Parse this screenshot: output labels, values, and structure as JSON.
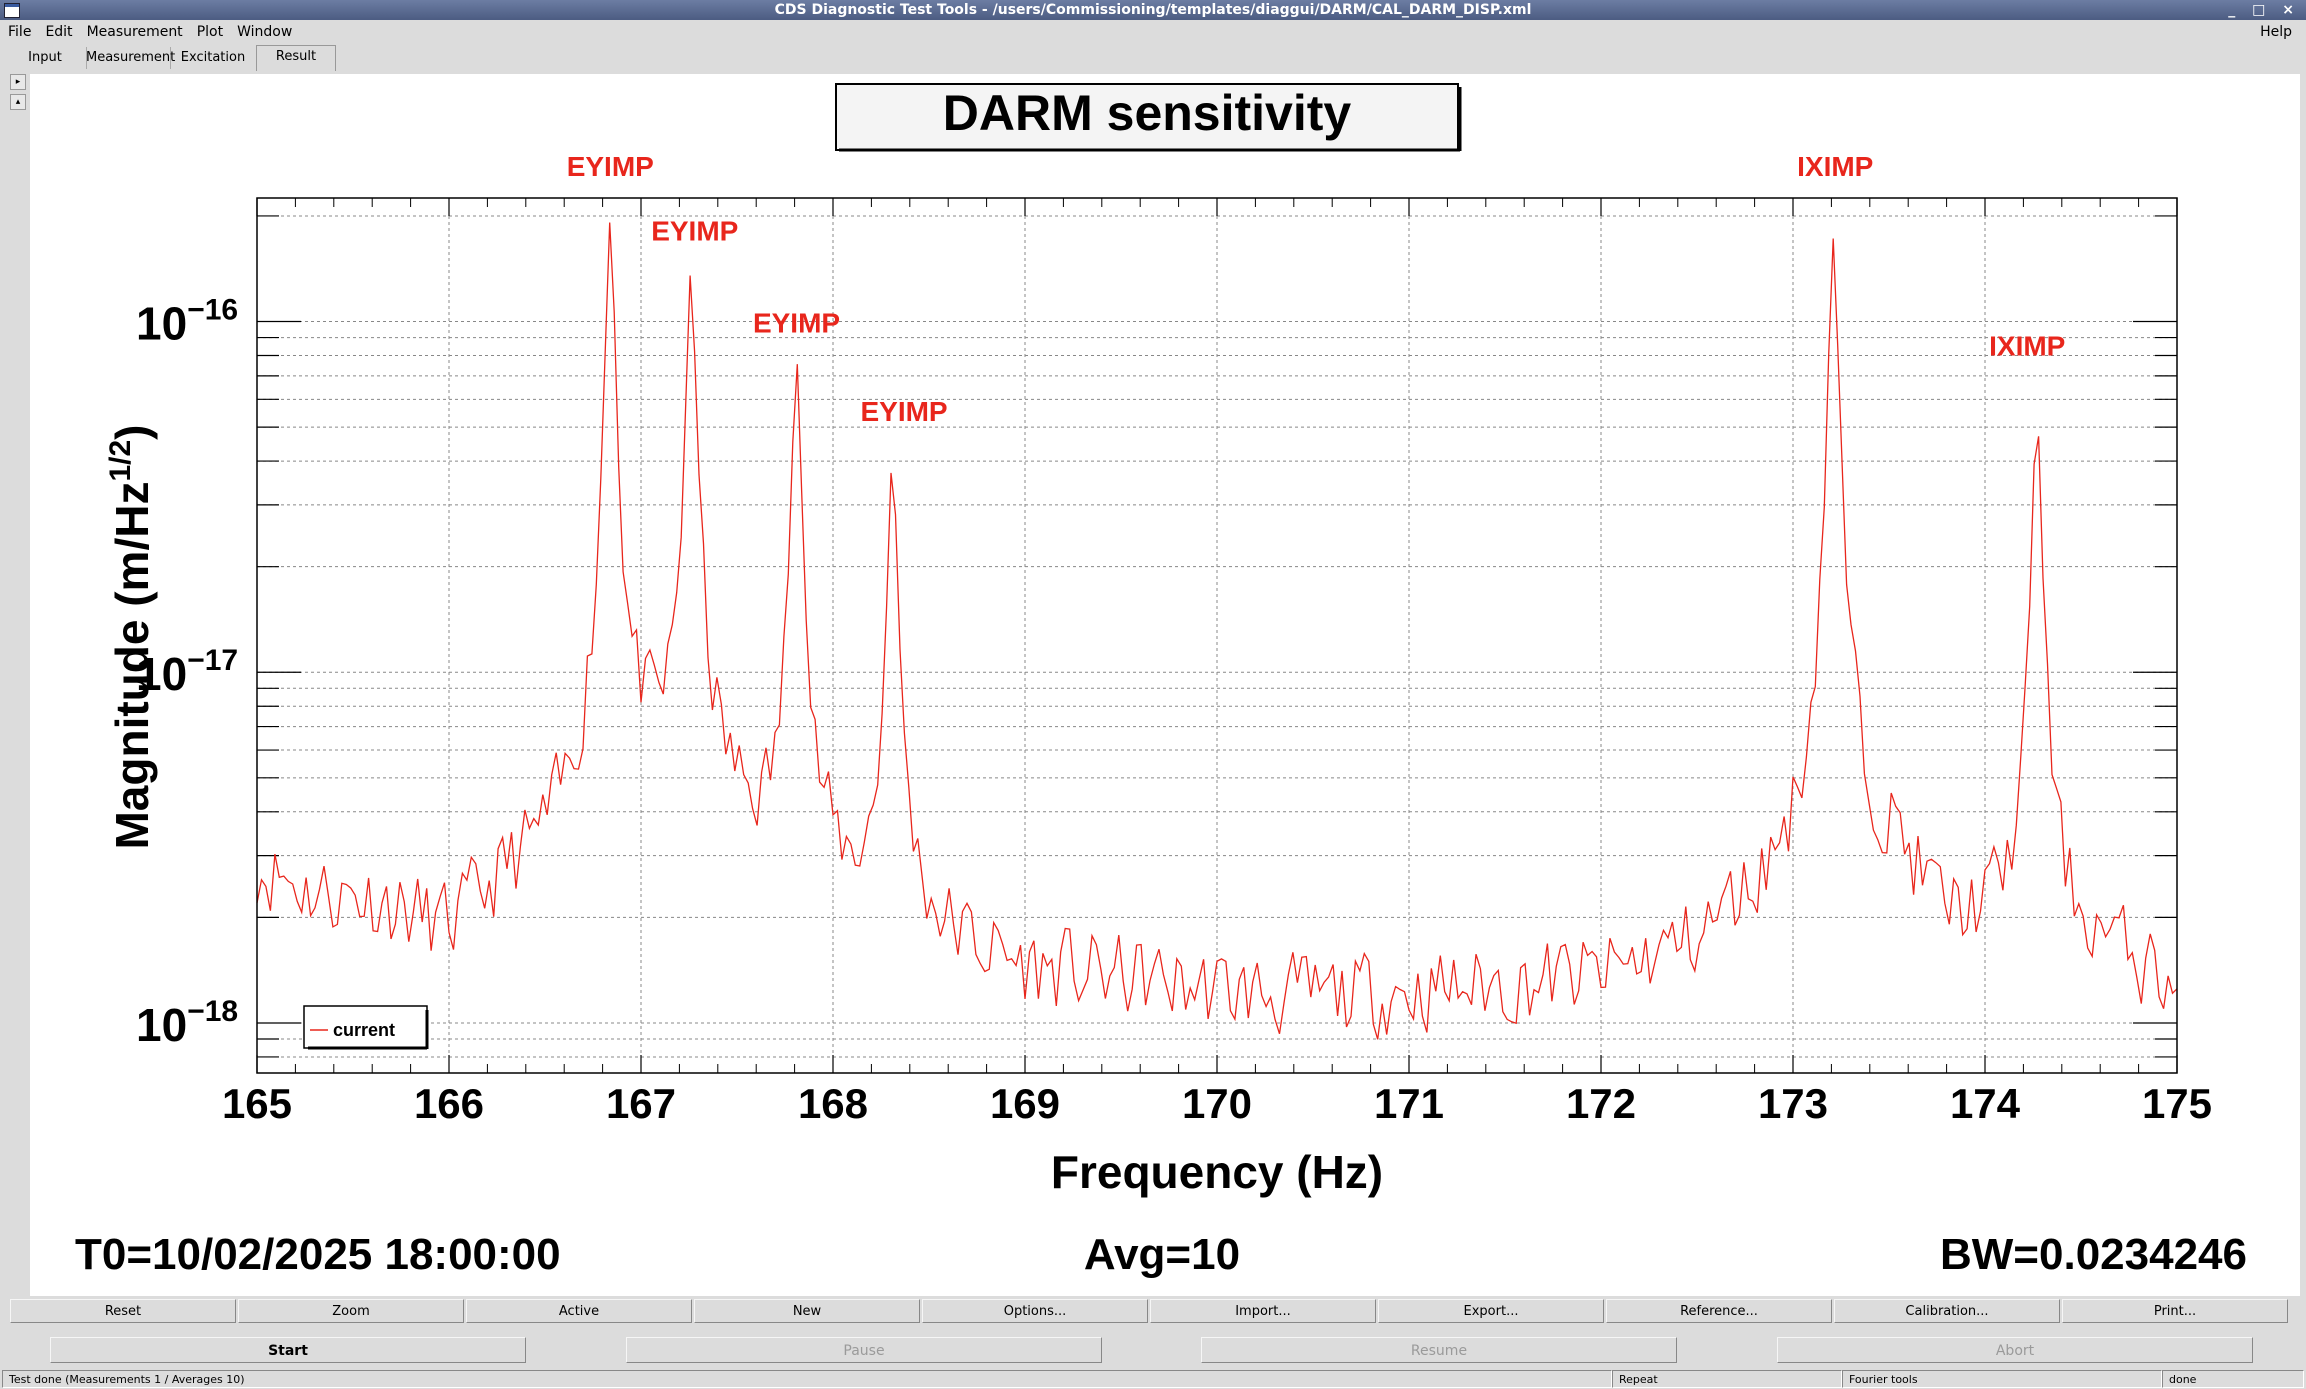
{
  "window": {
    "title": "CDS Diagnostic Test Tools - /users/Commissioning/templates/diaggui/DARM/CAL_DARM_DISP.xml",
    "controls": "_ □ ×"
  },
  "menu": {
    "items": [
      "File",
      "Edit",
      "Measurement",
      "Plot",
      "Window"
    ],
    "help": "Help"
  },
  "tabs": [
    "Input",
    "Measurement",
    "Excitation",
    "Result"
  ],
  "tab_active": "Result",
  "plot": {
    "title": "DARM sensitivity",
    "legend_label": "current",
    "info_t0": "T0=10/02/2025 18:00:00",
    "info_avg": "Avg=10",
    "info_bw": "BW=0.0234246",
    "line_color": "#e8261c"
  },
  "chart_data": {
    "type": "line",
    "title": "DARM sensitivity",
    "xlabel": "Frequency (Hz)",
    "ylabel": "Magnitude (m/Hz^1/2)",
    "xlim": [
      165,
      175
    ],
    "ylim": [
      7.2e-19,
      2.25e-16
    ],
    "yscale": "log",
    "grid": true,
    "legend_placement": "bottom-left",
    "x_ticks": [
      "165",
      "166",
      "167",
      "168",
      "169",
      "170",
      "171",
      "172",
      "173",
      "174",
      "175"
    ],
    "y_ticks": [
      {
        "base": "10",
        "exp": "−16",
        "value": 1e-16
      },
      {
        "base": "10",
        "exp": "−17",
        "value": 1e-17
      },
      {
        "base": "10",
        "exp": "−18",
        "value": 1e-18
      }
    ],
    "series": [
      {
        "name": "current",
        "color": "#e8261c",
        "baseline": [
          [
            165.0,
            2.8e-18
          ],
          [
            165.3,
            2.3e-18
          ],
          [
            165.6,
            2.2e-18
          ],
          [
            166.0,
            1.7e-18
          ],
          [
            166.3,
            2.4e-18
          ],
          [
            166.6,
            3.1e-18
          ],
          [
            167.0,
            5e-18
          ],
          [
            167.4,
            4e-18
          ],
          [
            167.7,
            2.7e-18
          ],
          [
            168.0,
            2.3e-18
          ],
          [
            168.3,
            2e-18
          ],
          [
            168.5,
            1.7e-18
          ],
          [
            169.0,
            1.35e-18
          ],
          [
            169.5,
            1.3e-18
          ],
          [
            170.0,
            1.2e-18
          ],
          [
            170.5,
            1.15e-18
          ],
          [
            171.0,
            1.2e-18
          ],
          [
            171.5,
            1.25e-18
          ],
          [
            172.0,
            1.3e-18
          ],
          [
            172.5,
            1.6e-18
          ],
          [
            172.9,
            2.3e-18
          ],
          [
            173.5,
            3e-18
          ],
          [
            173.8,
            1.8e-18
          ],
          [
            174.0,
            1.8e-18
          ],
          [
            174.6,
            1.6e-18
          ],
          [
            175.0,
            1.2e-18
          ]
        ],
        "peaks": [
          {
            "f": 166.84,
            "amp": 1.9e-16
          },
          {
            "f": 167.26,
            "amp": 1.35e-16
          },
          {
            "f": 167.81,
            "amp": 7.5e-17
          },
          {
            "f": 168.31,
            "amp": 3.9e-17
          },
          {
            "f": 173.21,
            "amp": 1.7e-16
          },
          {
            "f": 174.27,
            "amp": 5.3e-17
          }
        ]
      }
    ],
    "annotations": [
      {
        "text": "EYIMP",
        "f": 166.84,
        "label_y": 2.6e-16
      },
      {
        "text": "EYIMP",
        "f": 167.28,
        "label_y": 1.7e-16
      },
      {
        "text": "EYIMP",
        "f": 167.81,
        "label_y": 9.3e-17
      },
      {
        "text": "EYIMP",
        "f": 168.37,
        "label_y": 5.2e-17
      },
      {
        "text": "IXIMP",
        "f": 173.22,
        "label_y": 2.6e-16
      },
      {
        "text": "IXIMP",
        "f": 174.22,
        "label_y": 8e-17
      }
    ]
  },
  "toolbar": [
    "Reset",
    "Zoom",
    "Active",
    "New",
    "Options...",
    "Import...",
    "Export...",
    "Reference...",
    "Calibration...",
    "Print..."
  ],
  "actions": [
    {
      "label": "Start",
      "enabled": true
    },
    {
      "label": "Pause",
      "enabled": false
    },
    {
      "label": "Resume",
      "enabled": false
    },
    {
      "label": "Abort",
      "enabled": false
    }
  ],
  "status": {
    "main": "Test done (Measurements 1 / Averages 10)",
    "repeat": "Repeat",
    "fourier": "Fourier tools",
    "state": "done"
  }
}
